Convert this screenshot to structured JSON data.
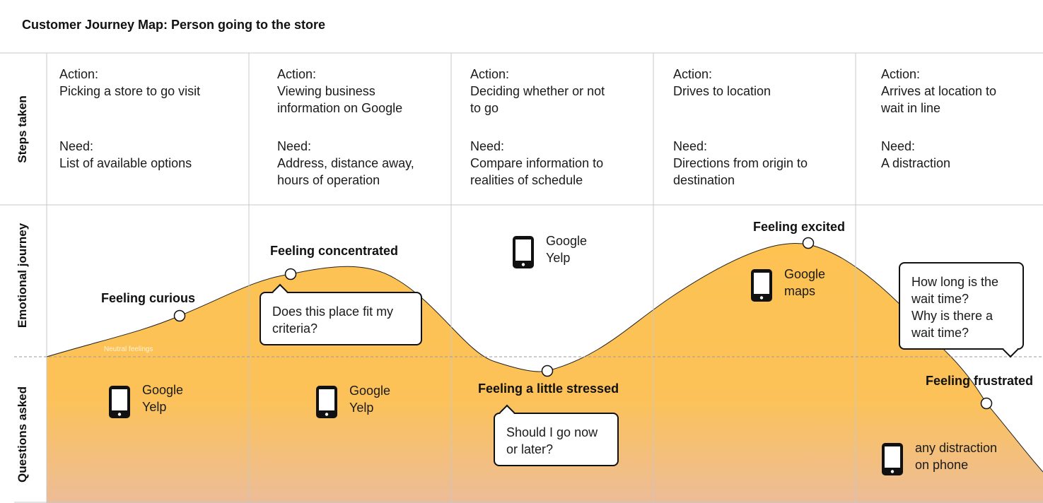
{
  "title": "Customer Journey Map: Person going to the store",
  "row_labels": {
    "steps": "Steps taken",
    "emotional": "Emotional journey",
    "questions": "Questions asked"
  },
  "stages": [
    {
      "action_label": "Action:",
      "action": "Picking a store to go visit",
      "need_label": "Need:",
      "need": "List of available options"
    },
    {
      "action_label": "Action:",
      "action": "Viewing business\ninformation on Google",
      "need_label": "Need:",
      "need": "Address, distance away,\nhours of operation"
    },
    {
      "action_label": "Action:",
      "action": "Deciding whether or not\nto go",
      "need_label": "Need:",
      "need": "Compare information to\nrealities of schedule"
    },
    {
      "action_label": "Action:",
      "action": "Drives to location",
      "need_label": "Need:",
      "need": "Directions from origin to\ndestination"
    },
    {
      "action_label": "Action:",
      "action": "Arrives at location to\nwait in line",
      "need_label": "Need:",
      "need": "A distraction"
    }
  ],
  "feelings": [
    "Feeling curious",
    "Feeling concentrated",
    "Feeling a little stressed",
    "Feeling excited",
    "Feeling frustrated"
  ],
  "neutral_label": "Neutral feelings",
  "questions": [
    "Does this place fit my\ncriteria?",
    "Should I go now\nor later?",
    "How long is the\nwait time?\nWhy is there a\nwait time?"
  ],
  "tools": [
    "Google\nYelp",
    "Google\nYelp",
    "Google\nYelp",
    "Google\nmaps",
    "any distraction\non phone"
  ],
  "colors": {
    "curve_top": "#fdc252",
    "curve_bottom": "#ecbc98",
    "grid": "#c8c8c8"
  }
}
